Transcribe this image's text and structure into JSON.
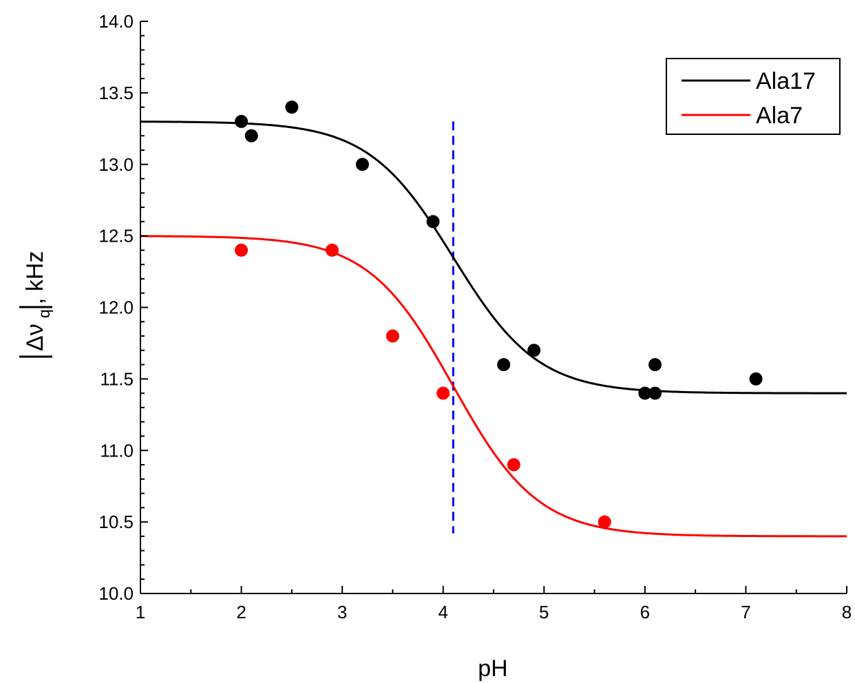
{
  "chart_data": {
    "type": "scatter",
    "title": "",
    "xlabel": "pH",
    "ylabel": {
      "prefix": "Δν",
      "subscript": "q",
      "suffix": ", kHz",
      "abs_bars": true
    },
    "xlim": [
      1,
      8
    ],
    "ylim": [
      10.0,
      14.0
    ],
    "x_ticks": [
      "1",
      "2",
      "3",
      "4",
      "5",
      "6",
      "7",
      "8"
    ],
    "y_ticks": [
      "10.0",
      "10.5",
      "11.0",
      "11.5",
      "12.0",
      "12.5",
      "13.0",
      "13.5",
      "14.0"
    ],
    "grid": false,
    "legend_position": "top-right",
    "series": [
      {
        "name": "Ala17",
        "color": "#000000",
        "points": [
          [
            2.0,
            13.3
          ],
          [
            2.1,
            13.2
          ],
          [
            2.5,
            13.4
          ],
          [
            3.2,
            13.0
          ],
          [
            3.9,
            12.6
          ],
          [
            4.6,
            11.6
          ],
          [
            4.9,
            11.7
          ],
          [
            6.0,
            11.4
          ],
          [
            6.1,
            11.4
          ],
          [
            6.1,
            11.6
          ],
          [
            7.1,
            11.5
          ]
        ],
        "fit": {
          "top": 13.3,
          "bottom": 11.4,
          "pka": 4.1,
          "slope": 0.42
        }
      },
      {
        "name": "Ala7",
        "color": "#ff0000",
        "points": [
          [
            2.0,
            12.4
          ],
          [
            2.9,
            12.4
          ],
          [
            3.5,
            11.8
          ],
          [
            4.0,
            11.4
          ],
          [
            4.7,
            10.9
          ],
          [
            5.6,
            10.5
          ]
        ],
        "fit": {
          "top": 12.5,
          "bottom": 10.4,
          "pka": 4.1,
          "slope": 0.42
        }
      }
    ],
    "reference_line": {
      "x": 4.1,
      "y_range": [
        10.42,
        13.3
      ],
      "color": "#0000ff",
      "style": "dashed"
    }
  }
}
